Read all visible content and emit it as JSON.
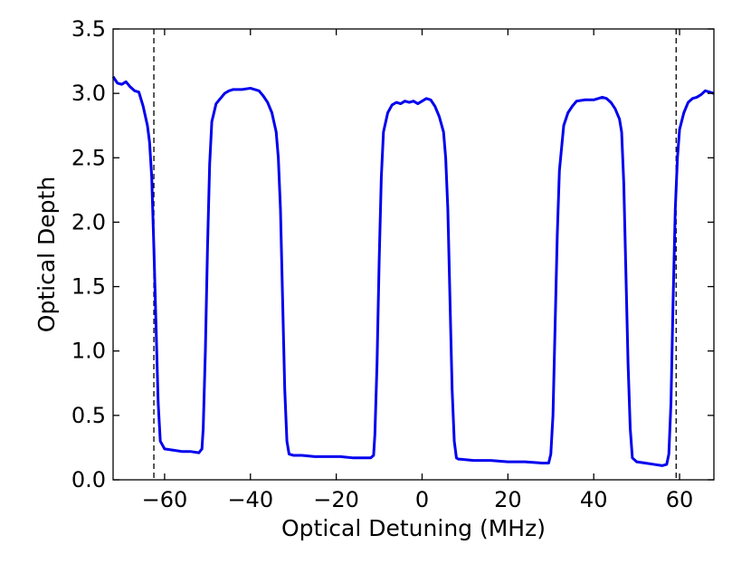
{
  "chart_data": {
    "type": "line",
    "title": "",
    "xlabel": "Optical Detuning (MHz)",
    "ylabel": "Optical Depth",
    "xlim": [
      -72,
      68
    ],
    "ylim": [
      0,
      3.5
    ],
    "grid": false,
    "legend": "none",
    "x_ticks": [
      -60,
      -40,
      -20,
      0,
      20,
      40,
      60
    ],
    "x_tick_labels": [
      "−60",
      "−40",
      "−20",
      "0",
      "20",
      "40",
      "60"
    ],
    "y_ticks": [
      0,
      0.5,
      1.0,
      1.5,
      2.0,
      2.5,
      3.0,
      3.5
    ],
    "y_tick_labels": [
      "0.0",
      "0.5",
      "1.0",
      "1.5",
      "2.0",
      "2.5",
      "3.0",
      "3.5"
    ],
    "vlines": [
      {
        "x": -62.5,
        "style": "dashed",
        "color": "#000000"
      },
      {
        "x": 59.2,
        "style": "dashed",
        "color": "#000000"
      }
    ],
    "series": [
      {
        "color": "#0000ee",
        "x": [
          -72,
          -71,
          -70,
          -69,
          -68,
          -67,
          -66,
          -65,
          -64,
          -63.5,
          -63,
          -62.5,
          -62,
          -61.5,
          -61,
          -60,
          -58,
          -56,
          -54,
          -52,
          -51.3,
          -51,
          -50.5,
          -50,
          -49.5,
          -49,
          -48,
          -47,
          -46,
          -45,
          -44,
          -42,
          -40,
          -38,
          -37,
          -36,
          -35,
          -34,
          -33.5,
          -33,
          -32.5,
          -32,
          -31.5,
          -31,
          -30,
          -28,
          -25,
          -22,
          -19,
          -16,
          -14,
          -12,
          -11.3,
          -11,
          -10.5,
          -10,
          -9.5,
          -9,
          -8,
          -7,
          -6,
          -5,
          -4,
          -3,
          -2,
          -1,
          0,
          1,
          2,
          3,
          4,
          5,
          5.5,
          6,
          6.5,
          7,
          7.5,
          8,
          8.5,
          9,
          12,
          16,
          20,
          24,
          28,
          29.5,
          30,
          30.5,
          31,
          31.5,
          32,
          33,
          34,
          35,
          36,
          38,
          40,
          42,
          43,
          44,
          45,
          46,
          46.5,
          47,
          47.5,
          48,
          48.5,
          49,
          50,
          52,
          54,
          56,
          57,
          57.5,
          58,
          58.5,
          59,
          59.5,
          60,
          61,
          62,
          63,
          64,
          65,
          66,
          67,
          68
        ],
        "y": [
          3.13,
          3.08,
          3.07,
          3.09,
          3.05,
          3.02,
          3.01,
          2.9,
          2.75,
          2.62,
          2.35,
          1.8,
          1.2,
          0.6,
          0.3,
          0.24,
          0.23,
          0.22,
          0.22,
          0.21,
          0.24,
          0.4,
          1.0,
          1.8,
          2.45,
          2.78,
          2.92,
          2.96,
          3.0,
          3.02,
          3.03,
          3.03,
          3.04,
          3.02,
          2.98,
          2.93,
          2.85,
          2.7,
          2.5,
          2.1,
          1.4,
          0.7,
          0.3,
          0.2,
          0.19,
          0.19,
          0.18,
          0.18,
          0.18,
          0.17,
          0.17,
          0.17,
          0.19,
          0.35,
          0.9,
          1.7,
          2.35,
          2.7,
          2.85,
          2.91,
          2.93,
          2.92,
          2.94,
          2.93,
          2.94,
          2.92,
          2.94,
          2.96,
          2.95,
          2.9,
          2.82,
          2.7,
          2.5,
          2.1,
          1.4,
          0.7,
          0.3,
          0.17,
          0.16,
          0.16,
          0.15,
          0.15,
          0.14,
          0.14,
          0.13,
          0.13,
          0.2,
          0.5,
          1.2,
          1.9,
          2.4,
          2.75,
          2.85,
          2.9,
          2.94,
          2.95,
          2.95,
          2.97,
          2.96,
          2.93,
          2.88,
          2.8,
          2.7,
          2.3,
          1.6,
          0.9,
          0.4,
          0.17,
          0.14,
          0.13,
          0.12,
          0.11,
          0.12,
          0.2,
          0.6,
          1.4,
          2.1,
          2.5,
          2.72,
          2.85,
          2.93,
          2.96,
          2.97,
          2.99,
          3.02,
          3.01,
          3.0
        ]
      }
    ]
  }
}
